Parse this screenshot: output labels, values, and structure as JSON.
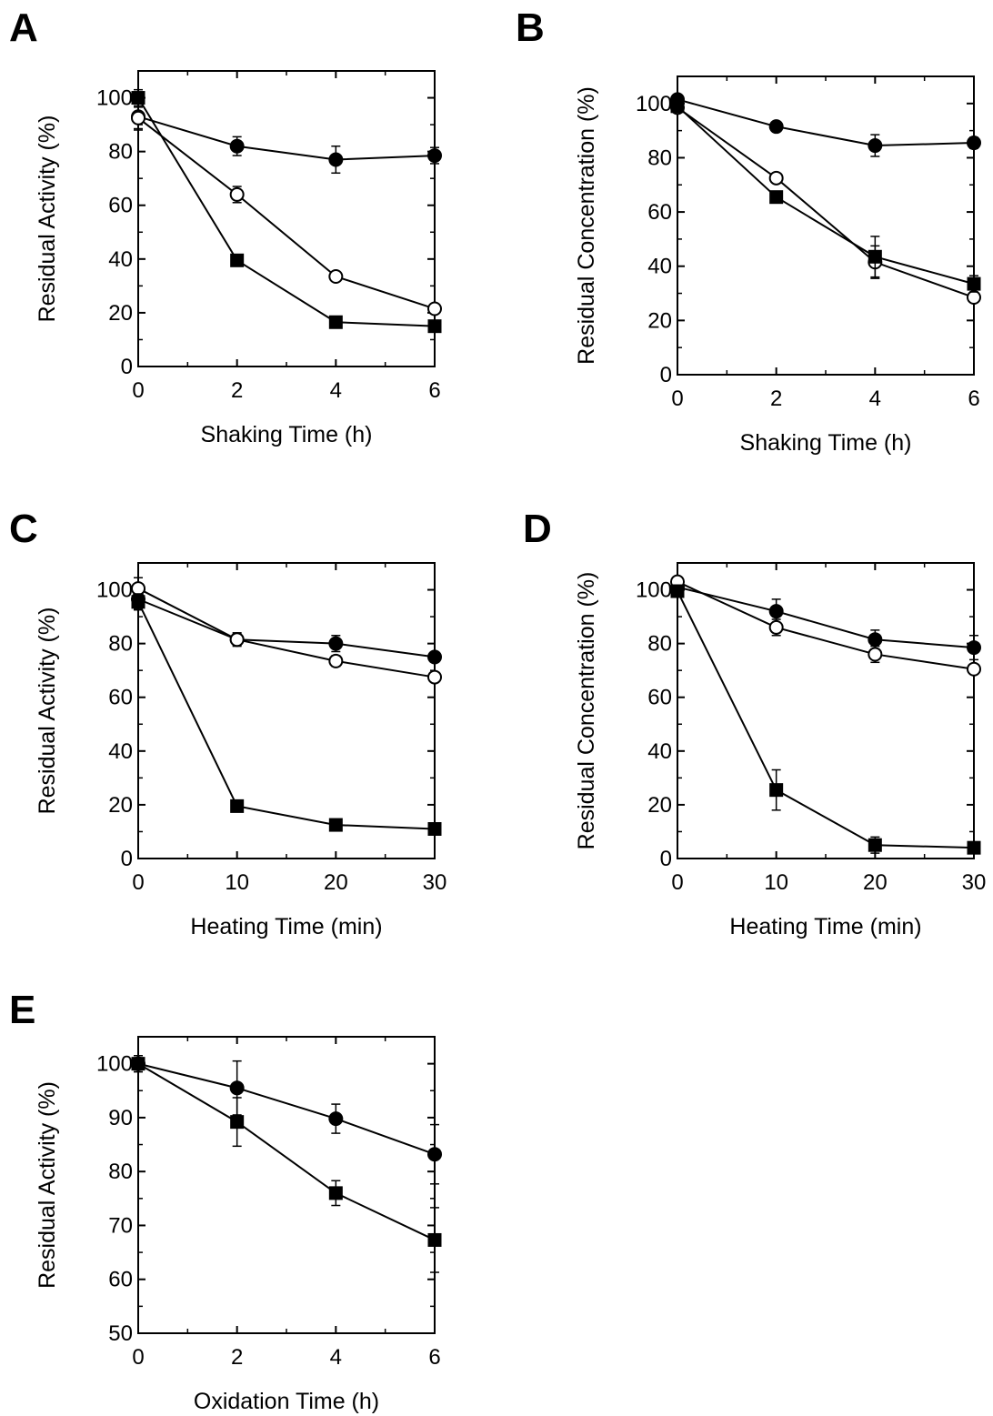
{
  "figure": {
    "panels": [
      "A",
      "B",
      "C",
      "D",
      "E"
    ]
  },
  "chart_data": [
    {
      "panel": "A",
      "type": "line",
      "xlabel": "Shaking Time (h)",
      "ylabel": "Residual Activity (%)",
      "xlim": [
        0,
        6
      ],
      "ylim": [
        0,
        110
      ],
      "xticks": [
        0,
        2,
        4,
        6
      ],
      "yticks": [
        0,
        20,
        40,
        60,
        80,
        100
      ],
      "series": [
        {
          "marker": "filled-circle",
          "x": [
            0,
            2,
            4,
            6
          ],
          "y": [
            93,
            82,
            77,
            78.5
          ],
          "err": [
            5,
            3.5,
            5,
            3
          ]
        },
        {
          "marker": "open-circle",
          "x": [
            0,
            2,
            4,
            6
          ],
          "y": [
            92.5,
            64,
            33.5,
            21.5
          ],
          "err": [
            4,
            3,
            1,
            1
          ]
        },
        {
          "marker": "filled-square",
          "x": [
            0,
            2,
            4,
            6
          ],
          "y": [
            100,
            39.5,
            16.5,
            15
          ],
          "err": [
            3,
            1,
            1,
            1
          ]
        }
      ]
    },
    {
      "panel": "B",
      "type": "line",
      "xlabel": "Shaking Time (h)",
      "ylabel": "Residual Concentration (%)",
      "xlim": [
        0,
        6
      ],
      "ylim": [
        0,
        110
      ],
      "xticks": [
        0,
        2,
        4,
        6
      ],
      "yticks": [
        0,
        20,
        40,
        60,
        80,
        100
      ],
      "series": [
        {
          "marker": "filled-circle",
          "x": [
            0,
            2,
            4,
            6
          ],
          "y": [
            101.5,
            91.5,
            84.5,
            85.5
          ],
          "err": [
            1.5,
            1.5,
            4,
            2
          ]
        },
        {
          "marker": "open-circle",
          "x": [
            0,
            2,
            4,
            6
          ],
          "y": [
            98.5,
            72.5,
            41.5,
            28.5
          ],
          "err": [
            1,
            1,
            6,
            1
          ]
        },
        {
          "marker": "filled-square",
          "x": [
            0,
            2,
            4,
            6
          ],
          "y": [
            99,
            65.5,
            43.5,
            33.5
          ],
          "err": [
            1,
            1.5,
            7.5,
            3
          ]
        }
      ]
    },
    {
      "panel": "C",
      "type": "line",
      "xlabel": "Heating Time (min)",
      "ylabel": "Residual Activity (%)",
      "xlim": [
        0,
        30
      ],
      "ylim": [
        0,
        110
      ],
      "xticks": [
        0,
        10,
        20,
        30
      ],
      "yticks": [
        0,
        20,
        40,
        60,
        80,
        100
      ],
      "series": [
        {
          "marker": "filled-circle",
          "x": [
            0,
            10,
            20,
            30
          ],
          "y": [
            96.5,
            81.5,
            80,
            75
          ],
          "err": [
            3.5,
            2,
            3,
            1.5
          ]
        },
        {
          "marker": "open-circle",
          "x": [
            0,
            10,
            20,
            30
          ],
          "y": [
            100.5,
            81.5,
            73.5,
            67.5
          ],
          "err": [
            4,
            2.5,
            2,
            1.5
          ]
        },
        {
          "marker": "filled-square",
          "x": [
            0,
            10,
            20,
            30
          ],
          "y": [
            95.5,
            19.5,
            12.5,
            11
          ],
          "err": [
            3,
            1,
            1,
            1
          ]
        }
      ]
    },
    {
      "panel": "D",
      "type": "line",
      "xlabel": "Heating Time (min)",
      "ylabel": "Residual Concentration (%)",
      "xlim": [
        0,
        30
      ],
      "ylim": [
        0,
        110
      ],
      "xticks": [
        0,
        10,
        20,
        30
      ],
      "yticks": [
        0,
        20,
        40,
        60,
        80,
        100
      ],
      "series": [
        {
          "marker": "filled-circle",
          "x": [
            0,
            10,
            20,
            30
          ],
          "y": [
            101,
            92,
            81.5,
            78.5
          ],
          "err": [
            2,
            4.5,
            3.5,
            4.5
          ]
        },
        {
          "marker": "open-circle",
          "x": [
            0,
            10,
            20,
            30
          ],
          "y": [
            103,
            86,
            76,
            70.5
          ],
          "err": [
            1.5,
            3,
            3,
            1.5
          ]
        },
        {
          "marker": "filled-square",
          "x": [
            0,
            10,
            20,
            30
          ],
          "y": [
            99.5,
            25.5,
            5,
            4
          ],
          "err": [
            2,
            7.5,
            3,
            1
          ]
        }
      ]
    },
    {
      "panel": "E",
      "type": "line",
      "xlabel": "Oxidation Time (h)",
      "ylabel": "Residual Activity (%)",
      "xlim": [
        0,
        6
      ],
      "ylim": [
        50,
        105
      ],
      "xticks": [
        0,
        2,
        4,
        6
      ],
      "yticks": [
        50,
        60,
        70,
        80,
        90,
        100
      ],
      "series": [
        {
          "marker": "filled-circle",
          "x": [
            0,
            2,
            4,
            6
          ],
          "y": [
            100,
            95.5,
            89.8,
            83.2
          ],
          "err": [
            1.5,
            5,
            2.7,
            5.5
          ]
        },
        {
          "marker": "filled-square",
          "x": [
            0,
            2,
            4,
            6
          ],
          "y": [
            100,
            89.2,
            76,
            67.3
          ],
          "err": [
            1.5,
            4.5,
            2.3,
            6
          ]
        }
      ]
    }
  ]
}
